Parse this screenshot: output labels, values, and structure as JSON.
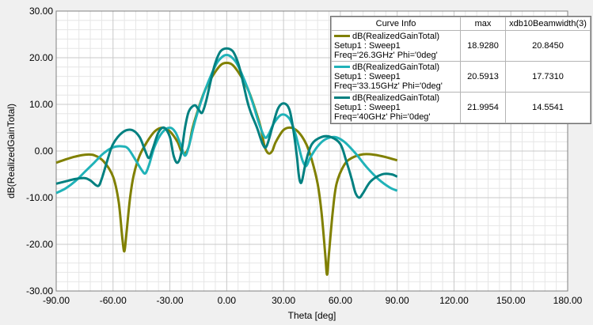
{
  "chart_data": {
    "type": "line",
    "xlabel": "Theta [deg]",
    "ylabel": "dB(RealizedGainTotal)",
    "xlim": [
      -90,
      180
    ],
    "ylim": [
      -30,
      30
    ],
    "x_ticks": [
      "-90.00",
      "-60.00",
      "-30.00",
      "0.00",
      "30.00",
      "60.00",
      "90.00",
      "120.00",
      "150.00",
      "180.00"
    ],
    "y_ticks": [
      "30.00",
      "20.00",
      "10.00",
      "0.00",
      "-10.00",
      "-20.00",
      "-30.00"
    ],
    "grid": true,
    "legend_position": "top-right",
    "legend_headers": [
      "Curve Info",
      "max",
      "xdb10Beamwidth(3)"
    ],
    "series": [
      {
        "name": "dB(RealizedGainTotal)",
        "setup": "Setup1 : Sweep1",
        "freq": "Freq='26.3GHz' Phi='0deg'",
        "color": "#808000",
        "max": "18.9280",
        "beamwidth": "20.8450",
        "points": [
          [
            -90,
            -2.5
          ],
          [
            -85,
            -1.8
          ],
          [
            -80,
            -1.2
          ],
          [
            -75,
            -0.8
          ],
          [
            -70,
            -0.9
          ],
          [
            -65,
            -2.2
          ],
          [
            -60,
            -5.5
          ],
          [
            -57,
            -11
          ],
          [
            -55,
            -19
          ],
          [
            -54,
            -21.5
          ],
          [
            -53,
            -18
          ],
          [
            -51,
            -10
          ],
          [
            -49,
            -5
          ],
          [
            -46,
            -1
          ],
          [
            -42,
            2
          ],
          [
            -38,
            4.2
          ],
          [
            -34,
            5
          ],
          [
            -30,
            4.2
          ],
          [
            -26,
            2
          ],
          [
            -24,
            0
          ],
          [
            -22,
            -0.5
          ],
          [
            -20,
            1
          ],
          [
            -18,
            5
          ],
          [
            -15,
            9
          ],
          [
            -12,
            12.5
          ],
          [
            -9,
            15
          ],
          [
            -6,
            17
          ],
          [
            -3,
            18.5
          ],
          [
            0,
            18.9
          ],
          [
            3,
            18.5
          ],
          [
            6,
            17
          ],
          [
            9,
            15
          ],
          [
            12,
            12.5
          ],
          [
            15,
            9
          ],
          [
            18,
            5
          ],
          [
            20,
            1
          ],
          [
            22,
            -0.5
          ],
          [
            24,
            0
          ],
          [
            26,
            2
          ],
          [
            30,
            4.5
          ],
          [
            34,
            5
          ],
          [
            38,
            4
          ],
          [
            42,
            1.5
          ],
          [
            45,
            -2
          ],
          [
            48,
            -7
          ],
          [
            50,
            -13
          ],
          [
            52,
            -22
          ],
          [
            53,
            -26.5
          ],
          [
            54,
            -22
          ],
          [
            56,
            -13
          ],
          [
            58,
            -7
          ],
          [
            62,
            -3
          ],
          [
            66,
            -1.5
          ],
          [
            72,
            -0.7
          ],
          [
            78,
            -0.8
          ],
          [
            84,
            -1.3
          ],
          [
            90,
            -2
          ]
        ]
      },
      {
        "name": "dB(RealizedGainTotal)",
        "setup": "Setup1 : Sweep1",
        "freq": "Freq='33.15GHz' Phi='0deg'",
        "color": "#20b2b8",
        "max": "20.5913",
        "beamwidth": "17.7310",
        "points": [
          [
            -90,
            -9
          ],
          [
            -85,
            -8
          ],
          [
            -80,
            -6.5
          ],
          [
            -75,
            -4.5
          ],
          [
            -70,
            -2.5
          ],
          [
            -65,
            -0.5
          ],
          [
            -60,
            0.8
          ],
          [
            -55,
            1
          ],
          [
            -52,
            0.5
          ],
          [
            -48,
            -2
          ],
          [
            -45,
            -4
          ],
          [
            -43,
            -4.8
          ],
          [
            -41,
            -3
          ],
          [
            -38,
            1
          ],
          [
            -34,
            4
          ],
          [
            -30,
            5
          ],
          [
            -27,
            4
          ],
          [
            -24,
            1
          ],
          [
            -22,
            -1
          ],
          [
            -20,
            1
          ],
          [
            -17,
            6
          ],
          [
            -14,
            10
          ],
          [
            -11,
            13.5
          ],
          [
            -8,
            16.5
          ],
          [
            -5,
            19
          ],
          [
            -2,
            20.3
          ],
          [
            0,
            20.6
          ],
          [
            2,
            20.3
          ],
          [
            5,
            19
          ],
          [
            8,
            16.5
          ],
          [
            11,
            13.5
          ],
          [
            14,
            10
          ],
          [
            17,
            6
          ],
          [
            20,
            3
          ],
          [
            22,
            3.5
          ],
          [
            25,
            6
          ],
          [
            29,
            7.8
          ],
          [
            33,
            7
          ],
          [
            36,
            4
          ],
          [
            38,
            1
          ],
          [
            40,
            -2
          ],
          [
            42,
            -3.2
          ],
          [
            44,
            -1.5
          ],
          [
            48,
            1
          ],
          [
            52,
            2.5
          ],
          [
            57,
            3
          ],
          [
            62,
            2
          ],
          [
            68,
            -0.5
          ],
          [
            74,
            -3.5
          ],
          [
            80,
            -6
          ],
          [
            86,
            -7.8
          ],
          [
            90,
            -8.5
          ]
        ]
      },
      {
        "name": "dB(RealizedGainTotal)",
        "setup": "Setup1 : Sweep1",
        "freq": "Freq='40GHz' Phi='0deg'",
        "color": "#008080",
        "max": "21.9954",
        "beamwidth": "14.5541",
        "points": [
          [
            -90,
            -7
          ],
          [
            -85,
            -6.5
          ],
          [
            -80,
            -6
          ],
          [
            -75,
            -5.8
          ],
          [
            -72,
            -6.3
          ],
          [
            -68,
            -7.5
          ],
          [
            -66,
            -6
          ],
          [
            -63,
            -2
          ],
          [
            -60,
            1.5
          ],
          [
            -55,
            4
          ],
          [
            -50,
            4.5
          ],
          [
            -46,
            3
          ],
          [
            -43,
            0
          ],
          [
            -41,
            -1.5
          ],
          [
            -39,
            0.5
          ],
          [
            -36,
            4
          ],
          [
            -33,
            5
          ],
          [
            -30,
            3
          ],
          [
            -28,
            -1
          ],
          [
            -26,
            -2.5
          ],
          [
            -24,
            -0.5
          ],
          [
            -22,
            5
          ],
          [
            -20,
            8.5
          ],
          [
            -17,
            9.8
          ],
          [
            -15,
            9
          ],
          [
            -13,
            8.2
          ],
          [
            -11,
            10.5
          ],
          [
            -9,
            14
          ],
          [
            -7,
            17.5
          ],
          [
            -5,
            20
          ],
          [
            -3,
            21.5
          ],
          [
            0,
            22
          ],
          [
            3,
            21.5
          ],
          [
            5,
            20
          ],
          [
            7,
            17.5
          ],
          [
            9,
            14
          ],
          [
            11,
            10.5
          ],
          [
            13,
            8
          ],
          [
            16,
            5
          ],
          [
            19,
            1.5
          ],
          [
            21,
            1
          ],
          [
            24,
            5
          ],
          [
            27,
            9
          ],
          [
            30,
            10.2
          ],
          [
            33,
            9
          ],
          [
            35,
            5
          ],
          [
            37,
            -1
          ],
          [
            38,
            -5
          ],
          [
            39,
            -6.8
          ],
          [
            40,
            -6
          ],
          [
            42,
            -2
          ],
          [
            45,
            1.5
          ],
          [
            50,
            3
          ],
          [
            55,
            3
          ],
          [
            60,
            1.5
          ],
          [
            63,
            -2
          ],
          [
            66,
            -6
          ],
          [
            68,
            -9
          ],
          [
            70,
            -10
          ],
          [
            72,
            -9
          ],
          [
            76,
            -6.5
          ],
          [
            82,
            -5
          ],
          [
            87,
            -5
          ],
          [
            90,
            -5.5
          ]
        ]
      }
    ]
  }
}
